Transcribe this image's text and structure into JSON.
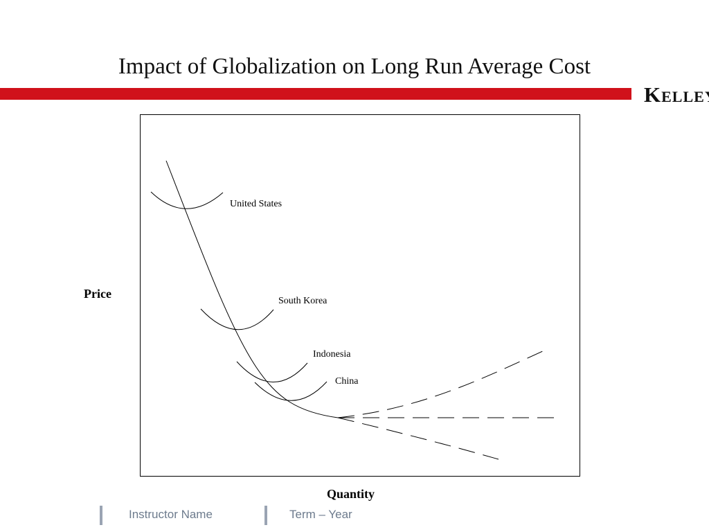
{
  "slide": {
    "title": "Impact of Globalization on Long Run Average Cost",
    "logo_text": "Kelley",
    "accent_color": "#d0111b"
  },
  "diagram": {
    "y_axis_label": "Price",
    "x_axis_label": "Quantity",
    "curve_labels": [
      "United States",
      "South Korea",
      "Indonesia",
      "China"
    ]
  },
  "footer": {
    "instructor": "Instructor Name",
    "term": "Term – Year"
  }
}
